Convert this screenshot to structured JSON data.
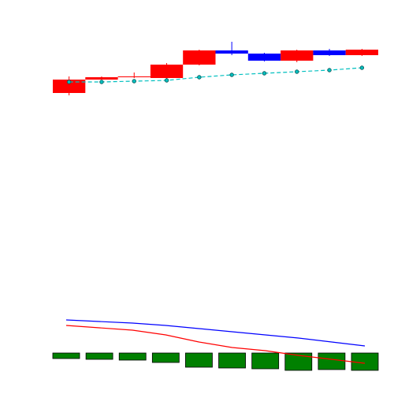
{
  "chart_data": [
    {
      "type": "candlestick",
      "open": [
        12,
        29,
        32,
        31,
        48,
        66,
        62,
        53,
        66,
        60
      ],
      "high": [
        33,
        33,
        38,
        50,
        67,
        77,
        63,
        67,
        68,
        68
      ],
      "low": [
        9,
        29,
        31,
        30,
        47,
        60,
        52,
        51,
        59,
        59
      ],
      "close": [
        29,
        32,
        33,
        48,
        66,
        62,
        53,
        66,
        60,
        67
      ],
      "up_color": "#ff0000",
      "down_color": "#0000ff",
      "series": [
        {
          "color": "#00bfbf",
          "line_style": "dashed",
          "marker": "circle",
          "values": [
            26,
            26,
            27,
            28,
            32,
            35,
            37,
            39,
            41,
            44
          ]
        }
      ],
      "ylim": [
        0,
        90
      ]
    },
    {
      "type": "bar",
      "values": [
        -7,
        -8,
        -9,
        -12,
        -18,
        -19,
        -20,
        -22,
        -21,
        -22
      ],
      "color": "#008000",
      "series": [
        {
          "color": "#0000ff",
          "values": [
            42,
            40,
            38,
            35,
            31,
            27,
            23,
            19,
            14,
            9
          ]
        },
        {
          "color": "#ff0000",
          "values": [
            35,
            32,
            29,
            23,
            14,
            7,
            3,
            -3,
            -8,
            -13
          ]
        }
      ],
      "ylim": [
        -42,
        68
      ]
    }
  ]
}
